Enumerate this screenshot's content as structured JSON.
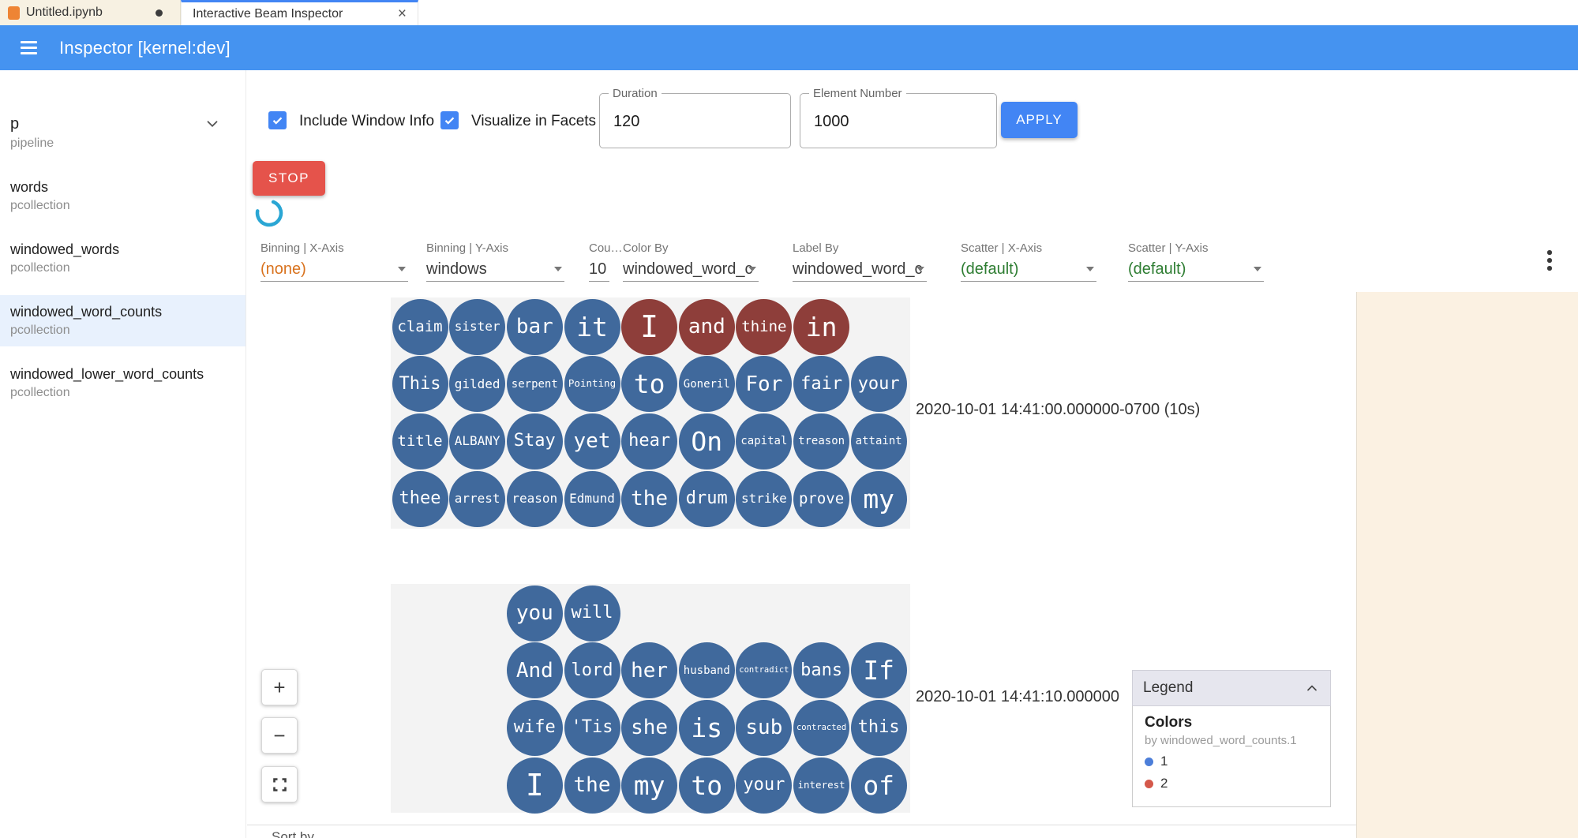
{
  "browser": {
    "notebook_tab": {
      "label": "Untitled.ipynb",
      "dirty": true
    },
    "inspector_tab": {
      "label": "Interactive Beam Inspector",
      "close": "×"
    }
  },
  "appbar": {
    "title": "Inspector [kernel:dev]"
  },
  "sidebar": {
    "header": {
      "name": "p",
      "type": "pipeline"
    },
    "items": [
      {
        "name": "words",
        "type": "pcollection",
        "selected": false
      },
      {
        "name": "windowed_words",
        "type": "pcollection",
        "selected": false
      },
      {
        "name": "windowed_word_counts",
        "type": "pcollection",
        "selected": true
      },
      {
        "name": "windowed_lower_word_counts",
        "type": "pcollection",
        "selected": false
      }
    ]
  },
  "controls": {
    "include_window_info": {
      "label": "Include Window Info",
      "checked": true
    },
    "visualize_in_facets": {
      "label": "Visualize in Facets",
      "checked": true
    },
    "duration": {
      "label": "Duration",
      "value": "120"
    },
    "element_number": {
      "label": "Element Number",
      "value": "1000"
    },
    "apply_label": "APPLY",
    "stop_label": "STOP"
  },
  "facet_controls": {
    "dropdowns": [
      {
        "label": "Binning | X-Axis",
        "value": "(none)",
        "value_color": "#d9731f"
      },
      {
        "label": "Binning | Y-Axis",
        "value": "windows",
        "value_color": "#3c3c3c"
      },
      {
        "label": "Cou…",
        "value": "10",
        "value_color": "#3c3c3c"
      },
      {
        "label": "Color By",
        "value": "windowed_word_c",
        "value_color": "#3c3c3c"
      },
      {
        "label": "Label By",
        "value": "windowed_word_c",
        "value_color": "#3c3c3c"
      },
      {
        "label": "Scatter | X-Axis",
        "value": "(default)",
        "value_color": "#2e7d32"
      },
      {
        "label": "Scatter | Y-Axis",
        "value": "(default)",
        "value_color": "#2e7d32"
      }
    ]
  },
  "visualization": {
    "palette": {
      "1": "#40699c",
      "2": "#8e3e3a"
    },
    "facets": [
      {
        "timestamp": "2020-10-01 14:41:00.000000-0700 (10s)",
        "rows": [
          {
            "offset": 0,
            "words": [
              {
                "t": "claim",
                "c": 1
              },
              {
                "t": "sister",
                "c": 1
              },
              {
                "t": "bar",
                "c": 1
              },
              {
                "t": "it",
                "c": 1
              },
              {
                "t": "I",
                "c": 2
              },
              {
                "t": "and",
                "c": 2
              },
              {
                "t": "thine",
                "c": 2
              },
              {
                "t": "in",
                "c": 2
              }
            ]
          },
          {
            "offset": 0,
            "words": [
              {
                "t": "This",
                "c": 1
              },
              {
                "t": "gilded",
                "c": 1
              },
              {
                "t": "serpent",
                "c": 1
              },
              {
                "t": "Pointing",
                "c": 1
              },
              {
                "t": "to",
                "c": 1
              },
              {
                "t": "Goneril",
                "c": 1
              },
              {
                "t": "For",
                "c": 1
              },
              {
                "t": "fair",
                "c": 1
              },
              {
                "t": "your",
                "c": 1
              }
            ]
          },
          {
            "offset": 0,
            "words": [
              {
                "t": "title",
                "c": 1
              },
              {
                "t": "ALBANY",
                "c": 1
              },
              {
                "t": "Stay",
                "c": 1
              },
              {
                "t": "yet",
                "c": 1
              },
              {
                "t": "hear",
                "c": 1
              },
              {
                "t": "On",
                "c": 1
              },
              {
                "t": "capital",
                "c": 1
              },
              {
                "t": "treason",
                "c": 1
              },
              {
                "t": "attaint",
                "c": 1
              }
            ]
          },
          {
            "offset": 0,
            "words": [
              {
                "t": "thee",
                "c": 1
              },
              {
                "t": "arrest",
                "c": 1
              },
              {
                "t": "reason",
                "c": 1
              },
              {
                "t": "Edmund",
                "c": 1
              },
              {
                "t": "the",
                "c": 1
              },
              {
                "t": "drum",
                "c": 1
              },
              {
                "t": "strike",
                "c": 1
              },
              {
                "t": "prove",
                "c": 1
              },
              {
                "t": "my",
                "c": 1
              }
            ]
          }
        ]
      },
      {
        "timestamp": "2020-10-01 14:41:10.000000",
        "rows": [
          {
            "offset": 2,
            "words": [
              {
                "t": "you",
                "c": 1
              },
              {
                "t": "will",
                "c": 1
              }
            ]
          },
          {
            "offset": 2,
            "words": [
              {
                "t": "And",
                "c": 1
              },
              {
                "t": "lord",
                "c": 1
              },
              {
                "t": "her",
                "c": 1
              },
              {
                "t": "husband",
                "c": 1
              },
              {
                "t": "contradict",
                "c": 1
              },
              {
                "t": "bans",
                "c": 1
              },
              {
                "t": "If",
                "c": 1
              }
            ]
          },
          {
            "offset": 2,
            "words": [
              {
                "t": "wife",
                "c": 1
              },
              {
                "t": "'Tis",
                "c": 1
              },
              {
                "t": "she",
                "c": 1
              },
              {
                "t": "is",
                "c": 1
              },
              {
                "t": "sub",
                "c": 1
              },
              {
                "t": "contracted",
                "c": 1
              },
              {
                "t": "this",
                "c": 1
              }
            ]
          },
          {
            "offset": 2,
            "words": [
              {
                "t": "I",
                "c": 1
              },
              {
                "t": "the",
                "c": 1
              },
              {
                "t": "my",
                "c": 1
              },
              {
                "t": "to",
                "c": 1
              },
              {
                "t": "your",
                "c": 1
              },
              {
                "t": "interest",
                "c": 1
              },
              {
                "t": "of",
                "c": 1
              }
            ]
          }
        ]
      }
    ],
    "legend": {
      "title": "Legend",
      "section": "Colors",
      "subtitle": "by windowed_word_counts.1",
      "items": [
        {
          "label": "1",
          "color": "#4c7ed9"
        },
        {
          "label": "2",
          "color": "#d4584a"
        }
      ]
    },
    "zoom_in": "+",
    "zoom_out": "−",
    "sort_by": "Sort by"
  },
  "colors": {
    "appbar_blue": "#4593f0",
    "accent_blue": "#4285f4",
    "stop_red": "#e5534b",
    "none_orange": "#d9731f",
    "default_green": "#2e7d32",
    "cream_panel": "#fbf1e2",
    "selected_item_bg": "#e8f1fd",
    "spinner_teal": "#2aa6d4"
  }
}
